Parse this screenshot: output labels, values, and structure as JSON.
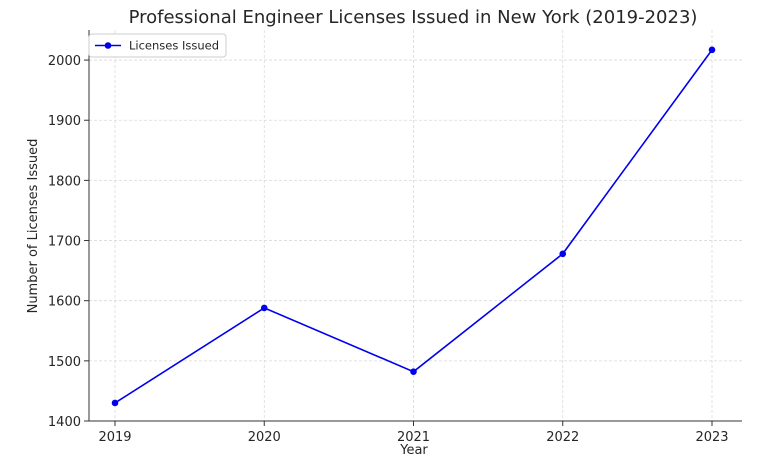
{
  "chart_data": {
    "type": "line",
    "title": "Professional Engineer Licenses Issued in New York (2019-2023)",
    "xlabel": "Year",
    "ylabel": "Number of Licenses Issued",
    "x": [
      "2019",
      "2020",
      "2021",
      "2022",
      "2023"
    ],
    "series": [
      {
        "name": "Licenses Issued",
        "values": [
          1430,
          1588,
          1482,
          1678,
          2017
        ],
        "color": "#0000ee"
      }
    ],
    "ylim": [
      1400,
      2050
    ],
    "yticks": [
      1400,
      1500,
      1600,
      1700,
      1800,
      1900,
      2000
    ],
    "grid": true,
    "legend": "top-left"
  }
}
